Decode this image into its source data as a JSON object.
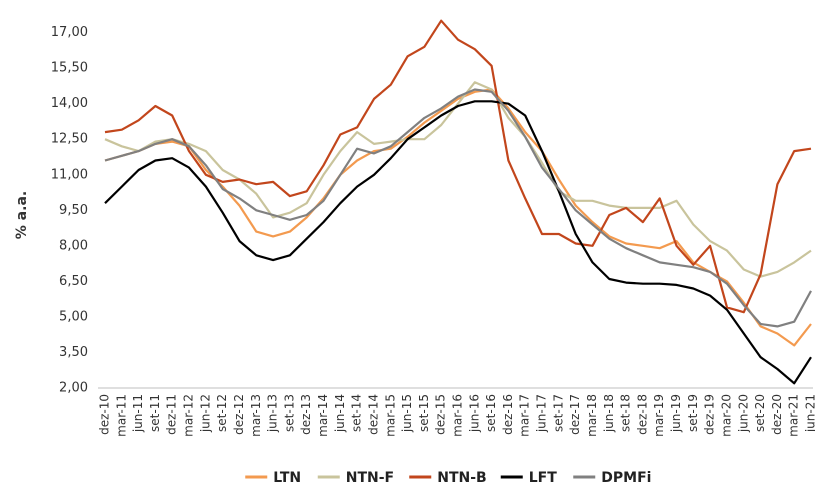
{
  "chart_data": {
    "type": "line",
    "y_label": "% a.a.",
    "categories": [
      "dez-10",
      "mar-11",
      "jun-11",
      "set-11",
      "dez-11",
      "mar-12",
      "jun-12",
      "set-12",
      "dez-12",
      "mar-13",
      "jun-13",
      "set-13",
      "dez-13",
      "mar-14",
      "jun-14",
      "set-14",
      "dez-14",
      "mar-15",
      "jun-15",
      "set-15",
      "dez-15",
      "mar-16",
      "jun-16",
      "set-16",
      "dez-16",
      "mar-17",
      "jun-17",
      "set-17",
      "dez-17",
      "mar-18",
      "jun-18",
      "set-18",
      "dez-18",
      "mar-19",
      "jun-19",
      "set-19",
      "dez-19",
      "mar-20",
      "jun-20",
      "set-20",
      "dez-20",
      "mar-21",
      "jun-21"
    ],
    "series": [
      {
        "name": "LTN",
        "color": "#f39a4f",
        "values": [
          11.6,
          11.8,
          12.0,
          12.3,
          12.4,
          12.2,
          11.2,
          10.5,
          9.7,
          8.6,
          8.4,
          8.6,
          9.2,
          10.0,
          11.0,
          11.6,
          12.0,
          12.1,
          12.6,
          13.2,
          13.7,
          14.2,
          14.5,
          14.6,
          13.8,
          12.8,
          12.0,
          10.8,
          9.7,
          9.0,
          8.4,
          8.1,
          8.0,
          7.9,
          8.2,
          7.3,
          6.9,
          6.5,
          5.6,
          4.6,
          4.3,
          3.8,
          4.7
        ]
      },
      {
        "name": "NTN-F",
        "color": "#c9c49c",
        "values": [
          12.5,
          12.2,
          12.0,
          12.4,
          12.5,
          12.3,
          12.0,
          11.2,
          10.8,
          10.2,
          9.2,
          9.4,
          9.8,
          11.0,
          12.0,
          12.8,
          12.3,
          12.4,
          12.5,
          12.5,
          13.1,
          14.0,
          14.9,
          14.6,
          13.4,
          12.6,
          11.5,
          10.3,
          9.9,
          9.9,
          9.7,
          9.6,
          9.6,
          9.6,
          9.9,
          8.9,
          8.2,
          7.8,
          7.0,
          6.7,
          6.9,
          7.3,
          7.8
        ]
      },
      {
        "name": "NTN-B",
        "color": "#c2461c",
        "values": [
          12.8,
          12.9,
          13.3,
          13.9,
          13.5,
          12.0,
          11.0,
          10.7,
          10.8,
          10.6,
          10.7,
          10.1,
          10.3,
          11.4,
          12.7,
          13.0,
          14.2,
          14.8,
          16.0,
          16.4,
          17.5,
          16.7,
          16.3,
          15.6,
          11.6,
          10.0,
          8.5,
          8.5,
          8.1,
          8.0,
          9.3,
          9.6,
          9.0,
          10.0,
          8.0,
          7.2,
          8.0,
          5.4,
          5.2,
          6.8,
          10.6,
          12.0,
          12.1
        ]
      },
      {
        "name": "LFT",
        "color": "#000000",
        "values": [
          9.8,
          10.5,
          11.2,
          11.6,
          11.7,
          11.3,
          10.5,
          9.4,
          8.2,
          7.6,
          7.4,
          7.6,
          8.3,
          9.0,
          9.8,
          10.5,
          11.0,
          11.7,
          12.5,
          13.0,
          13.5,
          13.9,
          14.1,
          14.1,
          14.0,
          13.5,
          12.0,
          10.3,
          8.5,
          7.3,
          6.6,
          6.45,
          6.4,
          6.4,
          6.35,
          6.2,
          5.9,
          5.3,
          4.3,
          3.3,
          2.8,
          2.2,
          3.3
        ]
      },
      {
        "name": "DPMFi",
        "color": "#808080",
        "values": [
          11.6,
          11.8,
          12.0,
          12.3,
          12.5,
          12.2,
          11.4,
          10.4,
          10.0,
          9.5,
          9.3,
          9.1,
          9.3,
          9.9,
          11.0,
          12.1,
          11.9,
          12.2,
          12.8,
          13.4,
          13.8,
          14.3,
          14.6,
          14.5,
          13.7,
          12.6,
          11.3,
          10.4,
          9.5,
          8.9,
          8.3,
          7.9,
          7.6,
          7.3,
          7.2,
          7.1,
          6.9,
          6.4,
          5.5,
          4.7,
          4.6,
          4.8,
          6.1
        ]
      }
    ],
    "ylim": [
      2,
      17.7
    ],
    "yticks": [
      {
        "value": 2,
        "label": "2,00"
      },
      {
        "value": 3.5,
        "label": "3,50"
      },
      {
        "value": 5,
        "label": "5,00"
      },
      {
        "value": 6.5,
        "label": "6,50"
      },
      {
        "value": 8,
        "label": "8,00"
      },
      {
        "value": 9.5,
        "label": "9,50"
      },
      {
        "value": 11,
        "label": "11,00"
      },
      {
        "value": 12.5,
        "label": "12,50"
      },
      {
        "value": 14,
        "label": "14,00"
      },
      {
        "value": 15.5,
        "label": "15,50"
      },
      {
        "value": 17,
        "label": "17,00"
      }
    ],
    "grid": false
  }
}
